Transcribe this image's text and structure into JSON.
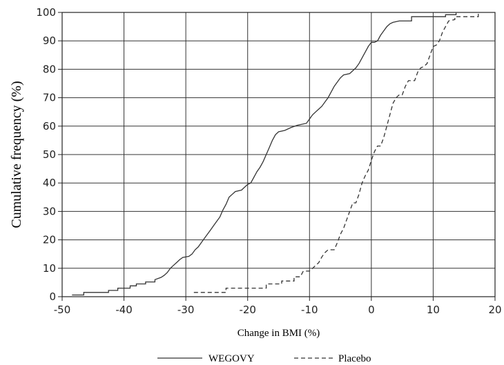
{
  "chart_data": {
    "type": "line",
    "xlabel": "Change in BMI (%)",
    "ylabel": "Cumulative frequency (%)",
    "xlim": [
      -50,
      20
    ],
    "ylim": [
      0,
      100
    ],
    "x_ticks": [
      -50,
      -40,
      -30,
      -20,
      -10,
      0,
      10,
      20
    ],
    "y_ticks": [
      0,
      10,
      20,
      30,
      40,
      50,
      60,
      70,
      80,
      90,
      100
    ],
    "grid": true,
    "legend_placement": "bottom",
    "series": [
      {
        "name": "WEGOVY",
        "style": "solid",
        "color": "#333333",
        "points": [
          [
            -48.4,
            0.6
          ],
          [
            -46.5,
            0.6
          ],
          [
            -46.5,
            1.5
          ],
          [
            -42.5,
            1.5
          ],
          [
            -42.5,
            2.2
          ],
          [
            -41,
            2.2
          ],
          [
            -41,
            3.0
          ],
          [
            -39,
            3.0
          ],
          [
            -39,
            3.8
          ],
          [
            -38,
            3.8
          ],
          [
            -38,
            4.5
          ],
          [
            -36.5,
            4.5
          ],
          [
            -36.5,
            5.2
          ],
          [
            -35,
            5.2
          ],
          [
            -35,
            6.0
          ],
          [
            -34,
            6.8
          ],
          [
            -33.5,
            7.5
          ],
          [
            -33,
            8.5
          ],
          [
            -32.5,
            10.0
          ],
          [
            -32,
            11.0
          ],
          [
            -31.5,
            12.0
          ],
          [
            -31,
            13.0
          ],
          [
            -30.5,
            13.8
          ],
          [
            -29.5,
            14.2
          ],
          [
            -29,
            15.0
          ],
          [
            -28.5,
            16.5
          ],
          [
            -28,
            17.5
          ],
          [
            -27.5,
            19.0
          ],
          [
            -27,
            20.5
          ],
          [
            -26.5,
            22.0
          ],
          [
            -26,
            23.5
          ],
          [
            -25.5,
            25.0
          ],
          [
            -25,
            26.5
          ],
          [
            -24.5,
            28.0
          ],
          [
            -24,
            30.5
          ],
          [
            -23.5,
            32.5
          ],
          [
            -23,
            35.0
          ],
          [
            -22.5,
            36.0
          ],
          [
            -22,
            37.0
          ],
          [
            -21,
            37.5
          ],
          [
            -20.5,
            38.5
          ],
          [
            -20,
            39.5
          ],
          [
            -19.5,
            40.0
          ],
          [
            -19,
            42.0
          ],
          [
            -18.5,
            44.0
          ],
          [
            -18,
            45.5
          ],
          [
            -17.5,
            47.5
          ],
          [
            -17,
            50.0
          ],
          [
            -16.5,
            52.5
          ],
          [
            -16,
            55.0
          ],
          [
            -15.5,
            57.0
          ],
          [
            -15,
            58.0
          ],
          [
            -14,
            58.5
          ],
          [
            -13,
            59.5
          ],
          [
            -12,
            60.3
          ],
          [
            -10.5,
            61.0
          ],
          [
            -10,
            62.5
          ],
          [
            -9.5,
            64.0
          ],
          [
            -9,
            65.0
          ],
          [
            -8.5,
            66.0
          ],
          [
            -8,
            67.0
          ],
          [
            -7.5,
            68.5
          ],
          [
            -7,
            70.0
          ],
          [
            -6.5,
            72.0
          ],
          [
            -6,
            74.0
          ],
          [
            -5.5,
            75.5
          ],
          [
            -5,
            77.0
          ],
          [
            -4.5,
            78.0
          ],
          [
            -3.5,
            78.5
          ],
          [
            -3,
            79.5
          ],
          [
            -2.5,
            80.5
          ],
          [
            -2,
            82.0
          ],
          [
            -1.5,
            84.0
          ],
          [
            -1,
            86.0
          ],
          [
            -0.5,
            88.0
          ],
          [
            0,
            89.5
          ],
          [
            0.5,
            89.5
          ],
          [
            1,
            90.0
          ],
          [
            1.5,
            92.0
          ],
          [
            2,
            93.5
          ],
          [
            2.5,
            95.0
          ],
          [
            3,
            96.0
          ],
          [
            3.5,
            96.5
          ],
          [
            4.5,
            97.0
          ],
          [
            6.5,
            97.0
          ],
          [
            6.5,
            98.5
          ],
          [
            12,
            98.5
          ],
          [
            12,
            99.2
          ],
          [
            13.7,
            99.2
          ],
          [
            13.7,
            99.8
          ]
        ]
      },
      {
        "name": "Placebo",
        "style": "dashed",
        "color": "#333333",
        "points": [
          [
            -28.7,
            1.5
          ],
          [
            -23.5,
            1.5
          ],
          [
            -23.5,
            3.0
          ],
          [
            -17,
            3.0
          ],
          [
            -17,
            4.5
          ],
          [
            -14.5,
            4.5
          ],
          [
            -14.5,
            5.5
          ],
          [
            -12.5,
            5.5
          ],
          [
            -12.5,
            7.0
          ],
          [
            -11.5,
            7.0
          ],
          [
            -11,
            9.0
          ],
          [
            -10,
            9.0
          ],
          [
            -9.5,
            10.0
          ],
          [
            -9,
            11.0
          ],
          [
            -8.5,
            12.0
          ],
          [
            -8,
            14.0
          ],
          [
            -7.5,
            15.5
          ],
          [
            -7,
            16.5
          ],
          [
            -6,
            16.5
          ],
          [
            -5.5,
            19.0
          ],
          [
            -5,
            22.0
          ],
          [
            -4.5,
            24.0
          ],
          [
            -4,
            27.0
          ],
          [
            -3.5,
            30.0
          ],
          [
            -3,
            33.0
          ],
          [
            -2.5,
            33.0
          ],
          [
            -2,
            36.0
          ],
          [
            -1.5,
            40.0
          ],
          [
            -1,
            42.5
          ],
          [
            -0.5,
            44.5
          ],
          [
            0,
            48.0
          ],
          [
            0.5,
            51.0
          ],
          [
            1,
            53.0
          ],
          [
            1.5,
            53.0
          ],
          [
            2,
            56.0
          ],
          [
            2.5,
            60.0
          ],
          [
            3,
            64.0
          ],
          [
            3.5,
            68.0
          ],
          [
            4,
            70.0
          ],
          [
            4.5,
            71.0
          ],
          [
            5,
            71.0
          ],
          [
            5.5,
            74.0
          ],
          [
            6,
            76.0
          ],
          [
            7,
            76.0
          ],
          [
            7.5,
            79.0
          ],
          [
            8,
            80.5
          ],
          [
            8.5,
            81.0
          ],
          [
            9,
            82.0
          ],
          [
            9.5,
            85.0
          ],
          [
            10,
            88.0
          ],
          [
            10.5,
            88.5
          ],
          [
            11,
            90.0
          ],
          [
            11.5,
            93.0
          ],
          [
            12,
            95.0
          ],
          [
            12.5,
            97.0
          ],
          [
            13.5,
            97.5
          ],
          [
            13.5,
            98.5
          ],
          [
            17.3,
            98.5
          ],
          [
            17.3,
            99.8
          ]
        ]
      }
    ]
  }
}
